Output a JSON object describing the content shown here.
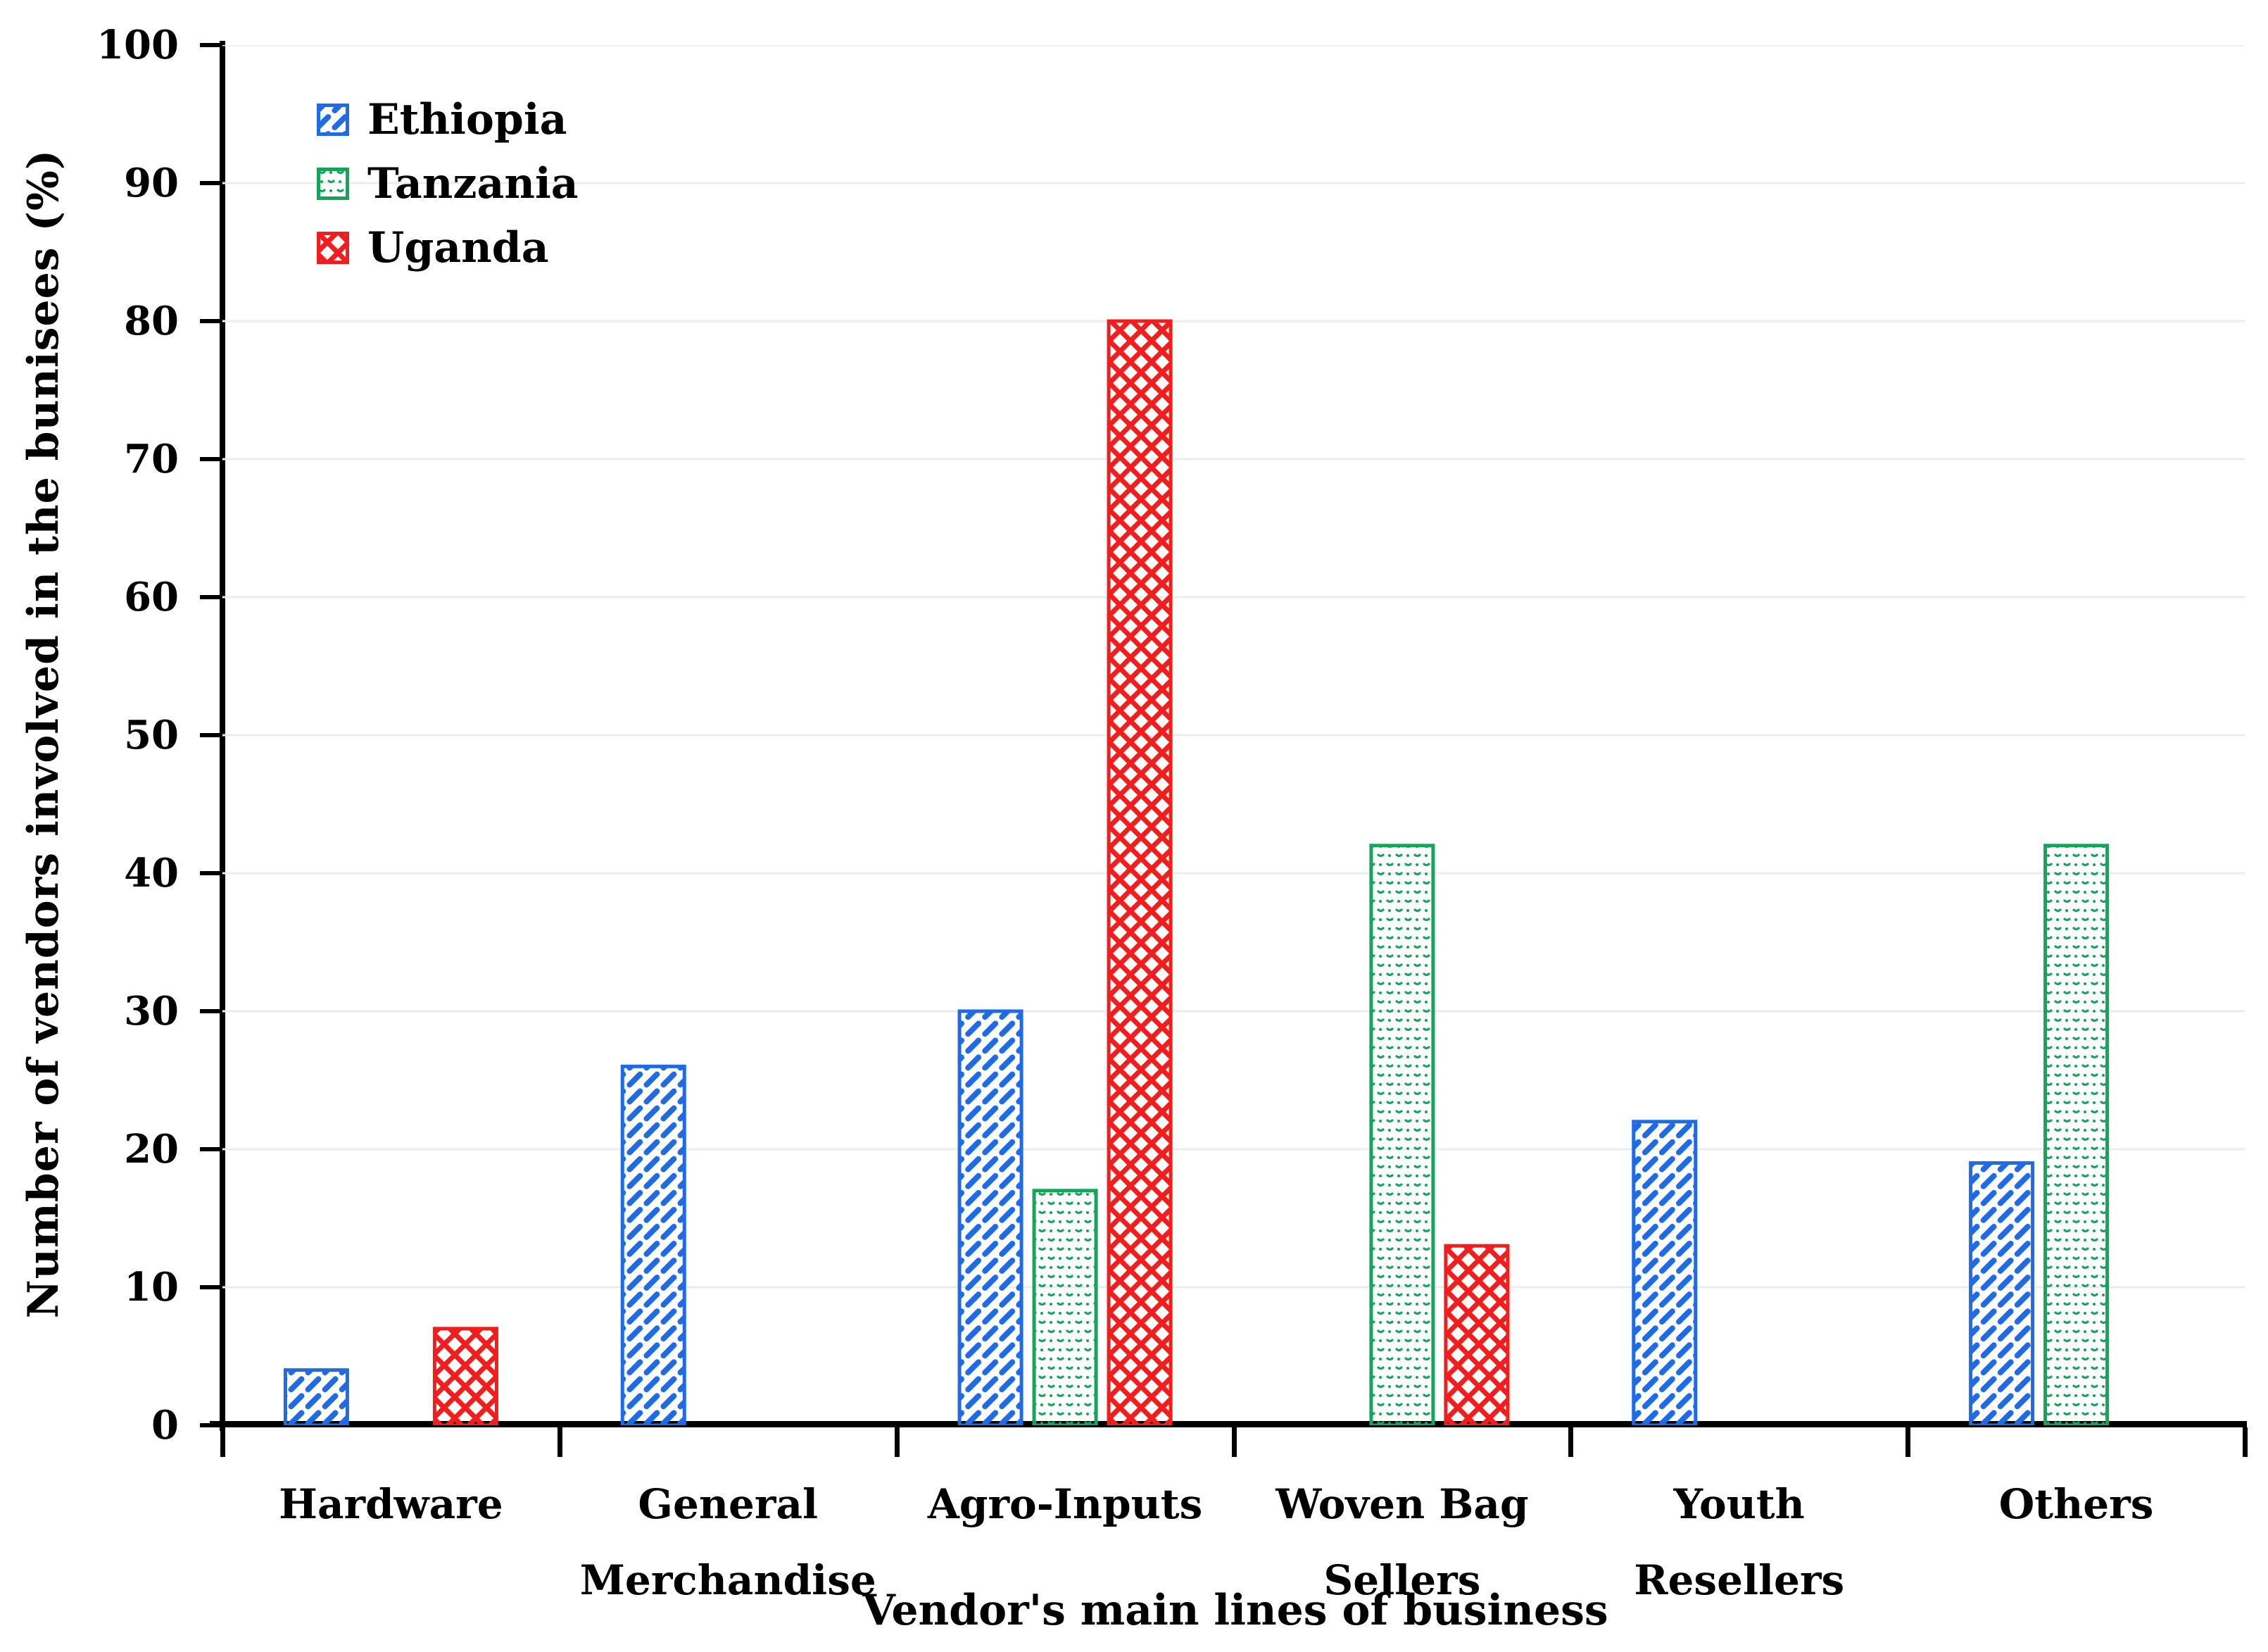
{
  "chart_data": {
    "type": "bar",
    "title": "",
    "xlabel": "Vendor's main lines of business",
    "ylabel": "Number of vendors involved in the bunisees (%)",
    "categories": [
      "Hardware",
      "General Merchandise",
      "Agro-Inputs",
      "Woven Bag Sellers",
      "Youth Resellers",
      "Others"
    ],
    "categories_display": [
      [
        "Hardware"
      ],
      [
        "General",
        "Merchandise"
      ],
      [
        "Agro-Inputs"
      ],
      [
        "Woven Bag",
        "Sellers"
      ],
      [
        "Youth Resellers"
      ],
      [
        "Others"
      ]
    ],
    "series": [
      {
        "name": "Ethiopia",
        "color": "#1F6BE6",
        "pattern": "diagonal-dash-weave",
        "values": [
          4,
          26,
          30,
          0,
          22,
          19
        ]
      },
      {
        "name": "Tanzania",
        "color": "#14A45A",
        "pattern": "sparse-dotted",
        "values": [
          0,
          0,
          17,
          42,
          0,
          42
        ]
      },
      {
        "name": "Uganda",
        "color": "#F21D1D",
        "pattern": "diamond-crosshatch",
        "values": [
          7,
          0,
          80,
          13,
          0,
          0
        ]
      }
    ],
    "ylim": [
      0,
      100
    ],
    "y_ticks": [
      0,
      10,
      20,
      30,
      40,
      50,
      60,
      70,
      80,
      90,
      100
    ],
    "grid": "horizontal",
    "gridline_color": "#ECECEC",
    "axis_color": "#000000",
    "legend_position": "top-left-inside"
  }
}
